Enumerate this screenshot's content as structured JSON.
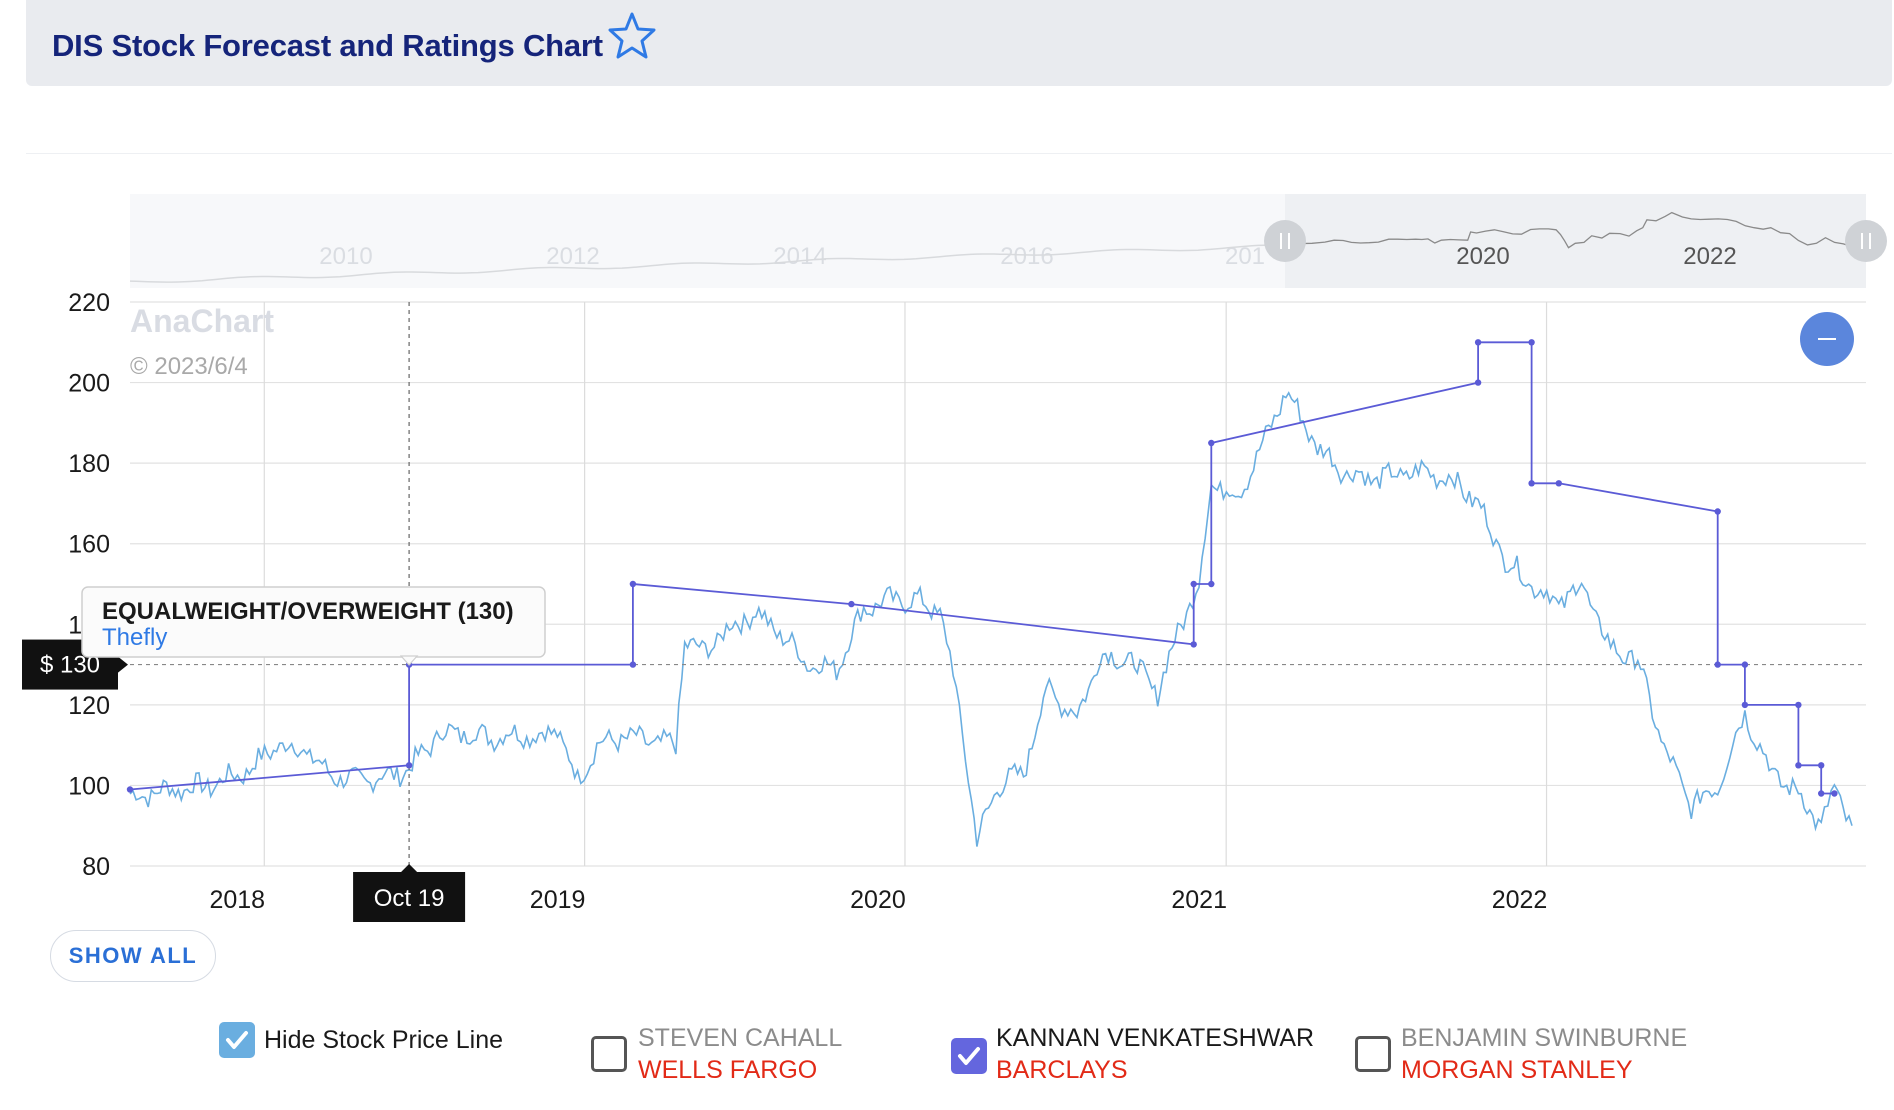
{
  "header": {
    "title": "DIS Stock Forecast and Ratings Chart",
    "icon": "star-icon"
  },
  "navigator": {
    "year_labels": [
      "2010",
      "2012",
      "2014",
      "2016",
      "201",
      "2020",
      "2022"
    ]
  },
  "watermark": {
    "brand": "AnaChart",
    "copyright": "© 2023/6/4"
  },
  "zoom_button": {
    "icon": "minus-icon"
  },
  "crosshair": {
    "price_label": "$ 130",
    "date_label": "Oct 19"
  },
  "tooltip": {
    "rating": "EQUALWEIGHT/OVERWEIGHT (130)",
    "source": "Thefly"
  },
  "chart_data": {
    "type": "line",
    "title": "DIS Stock Forecast and Ratings Chart",
    "xlabel": "",
    "ylabel": "",
    "y_ticks": [
      "220",
      "200",
      "180",
      "160",
      "140",
      "120",
      "100",
      "80"
    ],
    "ylim": [
      80,
      220
    ],
    "x_ticks": [
      "2018",
      "2019",
      "2020",
      "2021",
      "2022"
    ],
    "xlim": [
      "2017-08-01",
      "2022-12-31"
    ],
    "grid": true,
    "legend": "bottom",
    "colors": {
      "stock_line": "#6aaee0",
      "target_line": "#5b5bd6"
    },
    "series": [
      {
        "name": "",
        "style": "stock price line",
        "points": [
          [
            "2017-08-01",
            97
          ],
          [
            "2017-09-15",
            99
          ],
          [
            "2017-11-01",
            100
          ],
          [
            "2017-12-15",
            104
          ],
          [
            "2018-01-15",
            110
          ],
          [
            "2018-02-15",
            109
          ],
          [
            "2018-03-15",
            103
          ],
          [
            "2018-04-15",
            101
          ],
          [
            "2018-05-15",
            102
          ],
          [
            "2018-06-15",
            104
          ],
          [
            "2018-07-20",
            113
          ],
          [
            "2018-08-20",
            113
          ],
          [
            "2018-09-20",
            112
          ],
          [
            "2018-10-20",
            113
          ],
          [
            "2018-11-10",
            112
          ],
          [
            "2018-12-01",
            114
          ],
          [
            "2018-12-24",
            101
          ],
          [
            "2019-01-15",
            110
          ],
          [
            "2019-02-15",
            112
          ],
          [
            "2019-03-15",
            111
          ],
          [
            "2019-04-15",
            110
          ],
          [
            "2019-04-25",
            136
          ],
          [
            "2019-05-15",
            133
          ],
          [
            "2019-06-15",
            139
          ],
          [
            "2019-07-15",
            143
          ],
          [
            "2019-08-15",
            137
          ],
          [
            "2019-09-15",
            130
          ],
          [
            "2019-10-15",
            129
          ],
          [
            "2019-11-15",
            144
          ],
          [
            "2019-12-15",
            146
          ],
          [
            "2020-01-15",
            146
          ],
          [
            "2020-02-10",
            143
          ],
          [
            "2020-02-25",
            128
          ],
          [
            "2020-03-10",
            108
          ],
          [
            "2020-03-23",
            86
          ],
          [
            "2020-04-15",
            100
          ],
          [
            "2020-05-15",
            103
          ],
          [
            "2020-06-10",
            124
          ],
          [
            "2020-07-15",
            117
          ],
          [
            "2020-08-10",
            132
          ],
          [
            "2020-09-15",
            131
          ],
          [
            "2020-10-15",
            123
          ],
          [
            "2020-11-10",
            140
          ],
          [
            "2020-12-01",
            150
          ],
          [
            "2020-12-15",
            175
          ],
          [
            "2021-01-15",
            172
          ],
          [
            "2021-02-15",
            186
          ],
          [
            "2021-03-10",
            198
          ],
          [
            "2021-04-15",
            184
          ],
          [
            "2021-05-15",
            178
          ],
          [
            "2021-06-15",
            176
          ],
          [
            "2021-07-15",
            177
          ],
          [
            "2021-08-15",
            178
          ],
          [
            "2021-09-15",
            176
          ],
          [
            "2021-10-15",
            170
          ],
          [
            "2021-11-15",
            156
          ],
          [
            "2021-12-15",
            150
          ],
          [
            "2022-01-15",
            145
          ],
          [
            "2022-02-10",
            150
          ],
          [
            "2022-03-15",
            134
          ],
          [
            "2022-04-15",
            131
          ],
          [
            "2022-05-15",
            109
          ],
          [
            "2022-06-15",
            95
          ],
          [
            "2022-07-15",
            100
          ],
          [
            "2022-08-15",
            118
          ],
          [
            "2022-09-15",
            103
          ],
          [
            "2022-10-15",
            98
          ],
          [
            "2022-11-10",
            90
          ],
          [
            "2022-11-25",
            99
          ],
          [
            "2022-12-15",
            90
          ]
        ]
      },
      {
        "name": "KANNAN VENKATESHWAR",
        "style": "price target line",
        "points": [
          [
            "2017-08-01",
            99
          ],
          [
            "2018-06-15",
            105
          ],
          [
            "2018-06-15",
            130
          ],
          [
            "2019-02-25",
            130
          ],
          [
            "2019-02-25",
            150
          ],
          [
            "2019-11-01",
            145
          ],
          [
            "2020-11-25",
            135
          ],
          [
            "2020-11-25",
            150
          ],
          [
            "2020-12-15",
            150
          ],
          [
            "2020-12-15",
            185
          ],
          [
            "2021-10-15",
            200
          ],
          [
            "2021-10-15",
            210
          ],
          [
            "2021-12-15",
            210
          ],
          [
            "2021-12-15",
            175
          ],
          [
            "2022-01-15",
            175
          ],
          [
            "2022-07-15",
            168
          ],
          [
            "2022-07-15",
            130
          ],
          [
            "2022-08-15",
            130
          ],
          [
            "2022-08-15",
            120
          ],
          [
            "2022-10-15",
            120
          ],
          [
            "2022-10-15",
            105
          ],
          [
            "2022-11-10",
            105
          ],
          [
            "2022-11-10",
            98
          ],
          [
            "2022-11-25",
            98
          ]
        ]
      }
    ]
  },
  "show_all_label": "SHOW ALL",
  "legend": {
    "hide_stock": {
      "label": "Hide Stock Price Line",
      "checked": true
    },
    "analysts": [
      {
        "name": "STEVEN CAHALL",
        "firm": "WELLS FARGO",
        "checked": false
      },
      {
        "name": "KANNAN VENKATESHWAR",
        "firm": "BARCLAYS",
        "checked": true
      },
      {
        "name": "BENJAMIN SWINBURNE",
        "firm": "MORGAN STANLEY",
        "checked": false
      }
    ]
  }
}
